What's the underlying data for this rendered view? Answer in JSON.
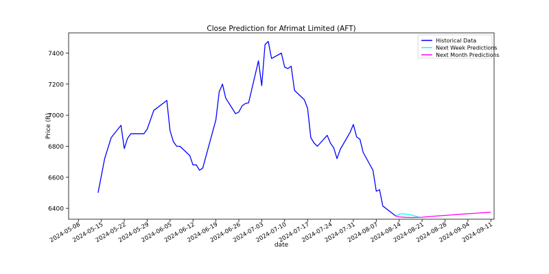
{
  "chart_data": {
    "type": "line",
    "title": "Close Prediction for Afrimat Limited (AFT)",
    "xlabel": "date",
    "ylabel": "Price (R)",
    "xlim": [
      "2024-05-08",
      "2024-09-11"
    ],
    "ylim": [
      6330,
      7530
    ],
    "x_ticks": [
      "2024-05-08",
      "2024-05-15",
      "2024-05-22",
      "2024-05-29",
      "2024-06-05",
      "2024-06-12",
      "2024-06-19",
      "2024-06-26",
      "2024-07-03",
      "2024-07-10",
      "2024-07-17",
      "2024-07-24",
      "2024-07-31",
      "2024-08-07",
      "2024-08-14",
      "2024-08-21",
      "2024-08-28",
      "2024-09-04",
      "2024-09-11"
    ],
    "y_ticks": [
      6400,
      6600,
      6800,
      7000,
      7200,
      7400
    ],
    "grid": false,
    "legend_position": "top-right",
    "series": [
      {
        "name": "Historical Data",
        "color": "#0000ff",
        "points": [
          [
            "2024-05-14",
            6500
          ],
          [
            "2024-05-16",
            6720
          ],
          [
            "2024-05-18",
            6855
          ],
          [
            "2024-05-21",
            6935
          ],
          [
            "2024-05-22",
            6785
          ],
          [
            "2024-05-23",
            6850
          ],
          [
            "2024-05-24",
            6880
          ],
          [
            "2024-05-28",
            6880
          ],
          [
            "2024-05-29",
            6910
          ],
          [
            "2024-05-31",
            7030
          ],
          [
            "2024-06-04",
            7095
          ],
          [
            "2024-06-05",
            6900
          ],
          [
            "2024-06-06",
            6830
          ],
          [
            "2024-06-07",
            6800
          ],
          [
            "2024-06-08",
            6800
          ],
          [
            "2024-06-11",
            6740
          ],
          [
            "2024-06-12",
            6680
          ],
          [
            "2024-06-13",
            6680
          ],
          [
            "2024-06-14",
            6645
          ],
          [
            "2024-06-15",
            6660
          ],
          [
            "2024-06-19",
            6970
          ],
          [
            "2024-06-20",
            7150
          ],
          [
            "2024-06-21",
            7200
          ],
          [
            "2024-06-22",
            7110
          ],
          [
            "2024-06-25",
            7010
          ],
          [
            "2024-06-26",
            7020
          ],
          [
            "2024-06-27",
            7060
          ],
          [
            "2024-06-28",
            7075
          ],
          [
            "2024-06-29",
            7080
          ],
          [
            "2024-07-02",
            7350
          ],
          [
            "2024-07-03",
            7190
          ],
          [
            "2024-07-04",
            7455
          ],
          [
            "2024-07-05",
            7475
          ],
          [
            "2024-07-06",
            7365
          ],
          [
            "2024-07-09",
            7400
          ],
          [
            "2024-07-10",
            7310
          ],
          [
            "2024-07-11",
            7300
          ],
          [
            "2024-07-12",
            7315
          ],
          [
            "2024-07-13",
            7160
          ],
          [
            "2024-07-16",
            7100
          ],
          [
            "2024-07-17",
            7045
          ],
          [
            "2024-07-18",
            6855
          ],
          [
            "2024-07-19",
            6820
          ],
          [
            "2024-07-20",
            6800
          ],
          [
            "2024-07-23",
            6870
          ],
          [
            "2024-07-24",
            6820
          ],
          [
            "2024-07-25",
            6790
          ],
          [
            "2024-07-26",
            6720
          ],
          [
            "2024-07-27",
            6780
          ],
          [
            "2024-07-30",
            6890
          ],
          [
            "2024-07-31",
            6940
          ],
          [
            "2024-08-01",
            6860
          ],
          [
            "2024-08-02",
            6845
          ],
          [
            "2024-08-03",
            6760
          ],
          [
            "2024-08-06",
            6645
          ],
          [
            "2024-08-07",
            6510
          ],
          [
            "2024-08-08",
            6520
          ],
          [
            "2024-08-09",
            6415
          ],
          [
            "2024-08-13",
            6350
          ]
        ]
      },
      {
        "name": "Next Week Predictions",
        "color": "#00ffff",
        "points": [
          [
            "2024-08-13",
            6350
          ],
          [
            "2024-08-14",
            6362
          ],
          [
            "2024-08-15",
            6365
          ],
          [
            "2024-08-16",
            6363
          ],
          [
            "2024-08-17",
            6360
          ],
          [
            "2024-08-18",
            6355
          ],
          [
            "2024-08-19",
            6350
          ],
          [
            "2024-08-20",
            6343
          ]
        ]
      },
      {
        "name": "Next Month Predictions",
        "color": "#ff00ff",
        "points": [
          [
            "2024-08-13",
            6350
          ],
          [
            "2024-08-14",
            6345
          ],
          [
            "2024-08-16",
            6342
          ],
          [
            "2024-08-18",
            6341
          ],
          [
            "2024-08-21",
            6343
          ],
          [
            "2024-08-25",
            6350
          ],
          [
            "2024-08-29",
            6356
          ],
          [
            "2024-09-02",
            6362
          ],
          [
            "2024-09-06",
            6368
          ],
          [
            "2024-09-11",
            6375
          ]
        ]
      }
    ]
  }
}
